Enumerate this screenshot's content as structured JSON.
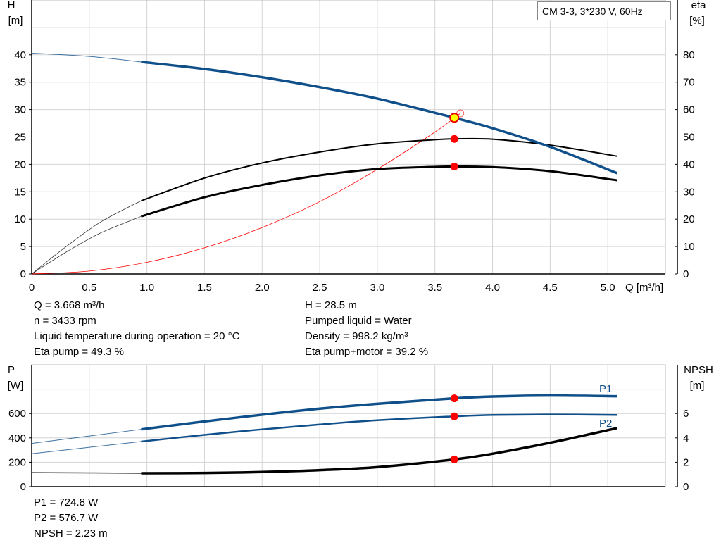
{
  "legend": "CM 3-3, 3*230 V, 60Hz",
  "chart_data": [
    {
      "type": "line",
      "xlabel": "Q [m³/h]",
      "ylabel": "H\n[m]",
      "y2label": "eta\n[%]",
      "xlim": [
        0,
        5.5
      ],
      "ylim": [
        0,
        50
      ],
      "y2lim": [
        0,
        100
      ],
      "xticks": [
        0,
        0.5,
        1.0,
        1.5,
        2.0,
        2.5,
        3.0,
        3.5,
        4.0,
        4.5,
        5.0
      ],
      "yticks": [
        0,
        5,
        10,
        15,
        20,
        25,
        30,
        35,
        40
      ],
      "y2ticks": [
        0,
        10,
        20,
        30,
        40,
        50,
        60,
        70,
        80
      ],
      "grid": true,
      "series": [
        {
          "id": "H",
          "axis": "left",
          "color": "#0f4f8a",
          "x": [
            0,
            0.5,
            0.95,
            1.5,
            2.0,
            2.5,
            3.0,
            3.5,
            3.668,
            4.0,
            4.5,
            5.08
          ],
          "y": [
            40.3,
            39.7,
            38.7,
            37.4,
            35.9,
            34.1,
            32.0,
            29.4,
            28.5,
            26.6,
            23.2,
            18.4
          ]
        },
        {
          "id": "eta_pump",
          "axis": "right",
          "color": "#000000",
          "x": [
            0,
            0.3,
            0.6,
            0.95,
            1.5,
            2.0,
            2.5,
            3.0,
            3.5,
            3.668,
            4.0,
            4.5,
            5.08
          ],
          "y": [
            0,
            10,
            19,
            26.7,
            35,
            40.5,
            44.5,
            47.5,
            49,
            49.3,
            49.2,
            47,
            43
          ]
        },
        {
          "id": "eta_pump_motor",
          "axis": "right",
          "color": "#000000",
          "x": [
            0,
            0.3,
            0.6,
            0.95,
            1.5,
            2.0,
            2.5,
            3.0,
            3.5,
            3.668,
            4.0,
            4.5,
            5.08
          ],
          "y": [
            0,
            8,
            15,
            21,
            28,
            32.5,
            36,
            38.3,
            39.1,
            39.2,
            39,
            37.5,
            34.2
          ]
        },
        {
          "id": "system",
          "axis": "left",
          "color": "#ff0000",
          "x": [
            0,
            0.5,
            1.0,
            1.5,
            2.0,
            2.5,
            3.0,
            3.5,
            3.72
          ],
          "y": [
            0,
            0.53,
            2.12,
            4.77,
            8.47,
            13.2,
            19.1,
            25.9,
            29.3
          ]
        }
      ],
      "operating_point": {
        "Q": 3.668,
        "H": 28.5,
        "eta_pump": 49.3,
        "eta_pump_motor": 39.2
      }
    },
    {
      "type": "line",
      "ylabel": "P\n[W]",
      "y2label": "NPSH\n[m]",
      "xlim": [
        0,
        5.5
      ],
      "ylim": [
        0,
        1000
      ],
      "y2lim": [
        0,
        10
      ],
      "yticks": [
        0,
        200,
        400,
        600
      ],
      "y2ticks": [
        0,
        2,
        4,
        6
      ],
      "grid": true,
      "series": [
        {
          "id": "P1",
          "name": "P1",
          "axis": "left",
          "color": "#0f4f8a",
          "x": [
            0,
            0.95,
            1.5,
            2.0,
            2.5,
            3.0,
            3.668,
            4.0,
            4.5,
            5.08
          ],
          "y": [
            355,
            470,
            535,
            590,
            640,
            680,
            724.8,
            740,
            748,
            742
          ]
        },
        {
          "id": "P2",
          "name": "P2",
          "axis": "left",
          "color": "#0f4f8a",
          "x": [
            0,
            0.95,
            1.5,
            2.0,
            2.5,
            3.0,
            3.668,
            4.0,
            4.5,
            5.08
          ],
          "y": [
            270,
            370,
            425,
            470,
            510,
            545,
            576.7,
            588,
            592,
            588
          ]
        },
        {
          "id": "NPSH",
          "axis": "right",
          "color": "#000000",
          "x": [
            0,
            0.95,
            1.5,
            2.0,
            2.5,
            3.0,
            3.668,
            4.0,
            4.5,
            5.08
          ],
          "y": [
            1.15,
            1.1,
            1.12,
            1.2,
            1.35,
            1.6,
            2.23,
            2.7,
            3.6,
            4.8
          ]
        }
      ],
      "operating_point": {
        "Q": 3.668,
        "P1": 724.8,
        "P2": 576.7,
        "NPSH": 2.23
      }
    }
  ],
  "info_top": {
    "left": [
      "Q = 3.668 m³/h",
      "n = 3433 rpm",
      "Liquid temperature during operation = 20 °C",
      "Eta pump = 49.3 %"
    ],
    "right": [
      "H = 28.5 m",
      "Pumped liquid = Water",
      "Density = 998.2 kg/m³",
      "Eta pump+motor = 39.2 %"
    ]
  },
  "info_bottom": [
    "P1 = 724.8 W",
    "P2 = 576.7 W",
    "NPSH = 2.23 m"
  ]
}
